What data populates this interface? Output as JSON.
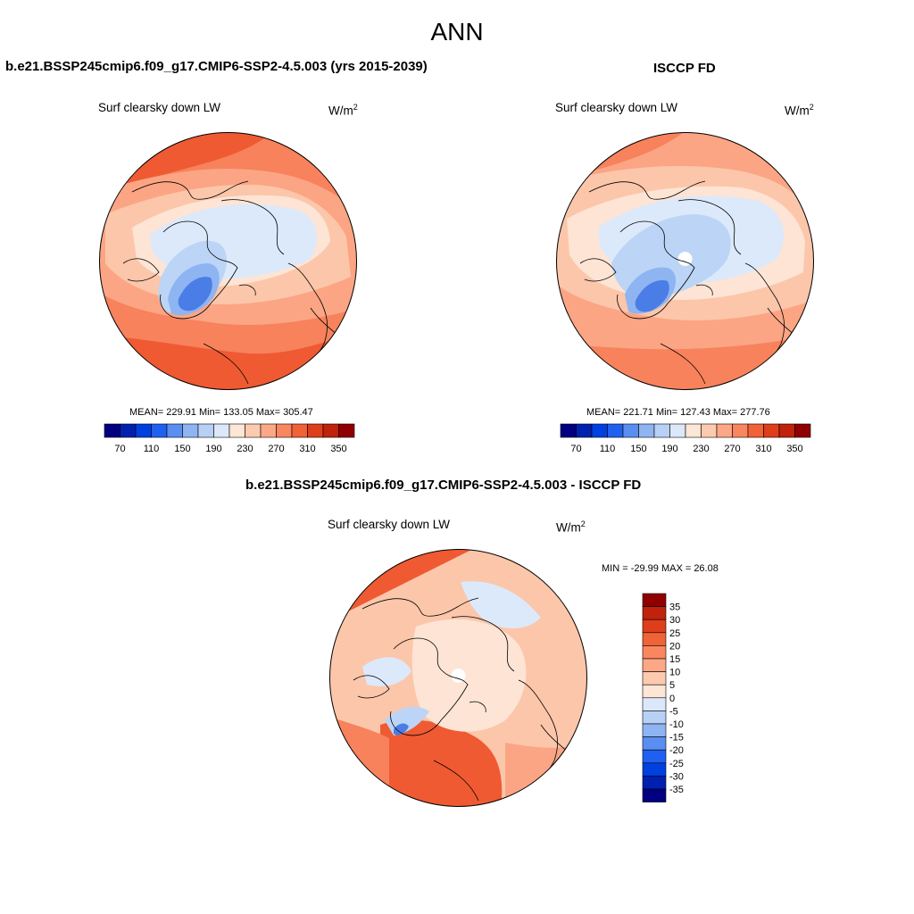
{
  "title": "ANN",
  "panels": [
    {
      "title": "b.e21.BSSP245cmip6.f09_g17.CMIP6-SSP2-4.5.003 (yrs 2015-2039)",
      "variable": "Surf clearsky down LW",
      "units_base": "W/m",
      "units_exp": "2",
      "stats": "MEAN= 229.91  Min= 133.05  Max= 305.47"
    },
    {
      "title": "ISCCP FD",
      "variable": "Surf clearsky down LW",
      "units_base": "W/m",
      "units_exp": "2",
      "stats": "MEAN= 221.71  Min= 127.43  Max= 277.76"
    },
    {
      "title": "b.e21.BSSP245cmip6.f09_g17.CMIP6-SSP2-4.5.003 - ISCCP FD",
      "variable": "Surf clearsky down LW",
      "units_base": "W/m",
      "units_exp": "2",
      "stats": "MIN = -29.99 MAX =  26.08"
    }
  ],
  "colorbar_main": {
    "colors": [
      "#000080",
      "#0020b0",
      "#0040e0",
      "#2060f0",
      "#5a8ef0",
      "#8eb4f2",
      "#b8d0f6",
      "#dce8fa",
      "#fde6d6",
      "#fccaae",
      "#fca886",
      "#fa8660",
      "#f06238",
      "#de3e1a",
      "#c0220c",
      "#900000"
    ],
    "tick_labels": [
      "70",
      "110",
      "150",
      "190",
      "230",
      "270",
      "310",
      "350"
    ]
  },
  "colorbar_diff": {
    "colors": [
      "#900000",
      "#c0220c",
      "#de3e1a",
      "#f06238",
      "#fa8660",
      "#fca886",
      "#fccaae",
      "#fde6d6",
      "#dce8fa",
      "#b8d0f6",
      "#8eb4f2",
      "#5a8ef0",
      "#2060f0",
      "#0040e0",
      "#0020b0",
      "#000080"
    ],
    "tick_labels": [
      "35",
      "30",
      "25",
      "20",
      "15",
      "10",
      "5",
      "0",
      "-5",
      "-10",
      "-15",
      "-20",
      "-25",
      "-30",
      "-35"
    ]
  },
  "map_fill_colors": {
    "deep_red": "#ef5a32",
    "red": "#f7825c",
    "salmon": "#fba584",
    "light_salmon": "#fcc6aa",
    "peach": "#fde4d4",
    "pale_blue": "#dce9fa",
    "light_blue": "#bcd4f6",
    "mid_blue": "#8eb4f2",
    "blue": "#4a7ee6",
    "missing": "#ffffff"
  }
}
